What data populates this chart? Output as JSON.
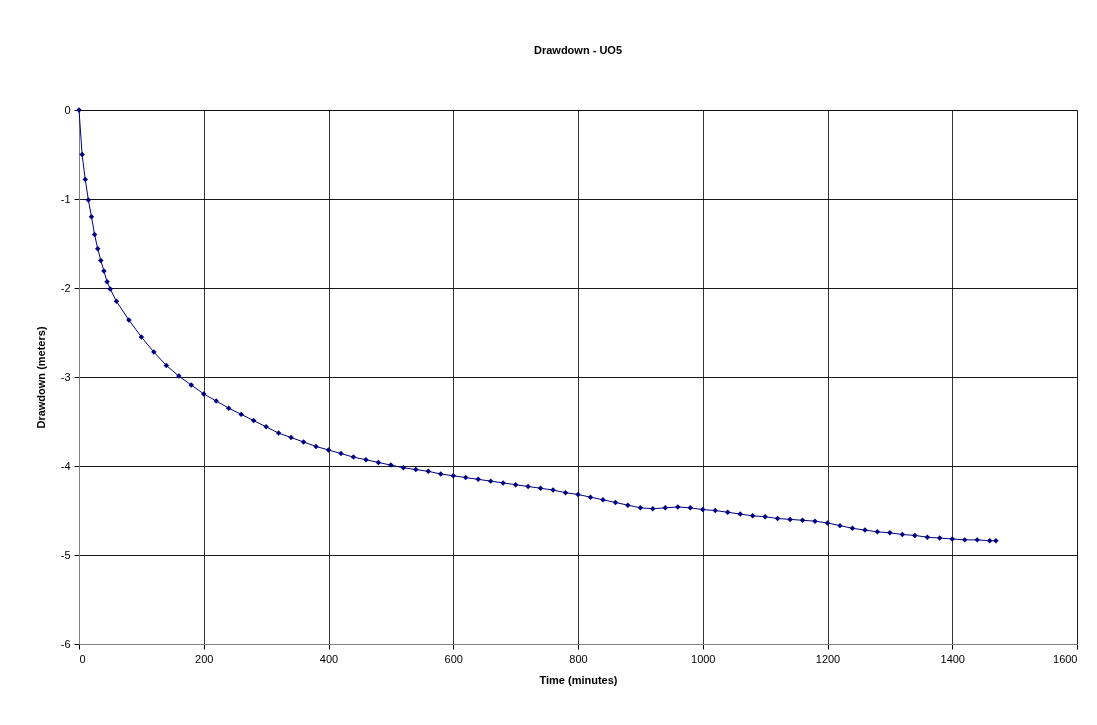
{
  "chart_data": {
    "type": "line",
    "title": "Drawdown - UO5",
    "xlabel": "Time (minutes)",
    "ylabel": "Drawdown (meters)",
    "x": [
      0,
      5,
      10,
      15,
      20,
      25,
      30,
      35,
      40,
      45,
      50,
      60,
      80,
      100,
      120,
      140,
      160,
      180,
      200,
      220,
      240,
      260,
      280,
      300,
      320,
      340,
      360,
      380,
      400,
      420,
      440,
      460,
      480,
      500,
      520,
      540,
      560,
      580,
      600,
      620,
      640,
      660,
      680,
      700,
      720,
      740,
      760,
      780,
      800,
      820,
      840,
      860,
      880,
      900,
      920,
      940,
      960,
      980,
      1000,
      1020,
      1040,
      1060,
      1080,
      1100,
      1120,
      1140,
      1160,
      1180,
      1200,
      1220,
      1240,
      1260,
      1280,
      1300,
      1320,
      1340,
      1360,
      1380,
      1400,
      1420,
      1440,
      1460,
      1470
    ],
    "values": [
      0,
      -0.5,
      -0.78,
      -1.01,
      -1.2,
      -1.4,
      -1.56,
      -1.69,
      -1.81,
      -1.93,
      -2.01,
      -2.15,
      -2.36,
      -2.55,
      -2.72,
      -2.87,
      -2.99,
      -3.09,
      -3.19,
      -3.27,
      -3.35,
      -3.42,
      -3.49,
      -3.56,
      -3.63,
      -3.68,
      -3.73,
      -3.78,
      -3.82,
      -3.86,
      -3.9,
      -3.93,
      -3.96,
      -3.99,
      -4.02,
      -4.04,
      -4.06,
      -4.09,
      -4.11,
      -4.13,
      -4.15,
      -4.17,
      -4.19,
      -4.21,
      -4.23,
      -4.25,
      -4.27,
      -4.3,
      -4.32,
      -4.35,
      -4.38,
      -4.41,
      -4.44,
      -4.47,
      -4.48,
      -4.47,
      -4.46,
      -4.47,
      -4.49,
      -4.5,
      -4.52,
      -4.54,
      -4.56,
      -4.57,
      -4.59,
      -4.6,
      -4.61,
      -4.62,
      -4.64,
      -4.67,
      -4.7,
      -4.72,
      -4.74,
      -4.75,
      -4.77,
      -4.78,
      -4.8,
      -4.81,
      -4.82,
      -4.83,
      -4.83,
      -4.84,
      -4.84
    ],
    "color": "#000080",
    "marker": "diamond",
    "line_style": "solid",
    "xlim": [
      0,
      1600
    ],
    "xticks": [
      0,
      200,
      400,
      600,
      800,
      1000,
      1200,
      1400,
      1600
    ],
    "ylim": [
      -6,
      0
    ],
    "yticks": [
      -6,
      -5,
      -4,
      -3,
      -2,
      -1,
      0
    ],
    "grid": true
  }
}
